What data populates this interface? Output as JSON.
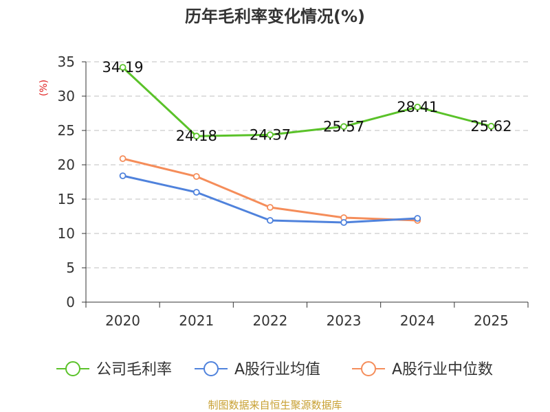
{
  "chart_data": {
    "type": "line",
    "title": "历年毛利率变化情况(%)",
    "ylabel": "(%)",
    "xlabel": "",
    "ylim": [
      0,
      35
    ],
    "yticks": [
      0,
      5,
      10,
      15,
      20,
      25,
      30,
      35
    ],
    "categories": [
      "2020",
      "2021",
      "2022",
      "2023",
      "2024",
      "2025"
    ],
    "grid": true,
    "legend_position": "bottom",
    "series": [
      {
        "name": "公司毛利率",
        "color": "#5ac229",
        "values": [
          34.19,
          24.18,
          24.37,
          25.57,
          28.41,
          25.62
        ],
        "labels": [
          "34.19",
          "24.18",
          "24.37",
          "25.57",
          "28.41",
          "25.62"
        ],
        "show_labels": true
      },
      {
        "name": "A股行业均值",
        "color": "#4f82dc",
        "values": [
          18.4,
          16.0,
          11.9,
          11.6,
          12.2,
          null
        ],
        "show_labels": false
      },
      {
        "name": "A股行业中位数",
        "color": "#f58d5a",
        "values": [
          20.9,
          18.3,
          13.8,
          12.3,
          11.9,
          null
        ],
        "show_labels": false
      }
    ]
  },
  "source": "制图数据来自恒生聚源数据库"
}
